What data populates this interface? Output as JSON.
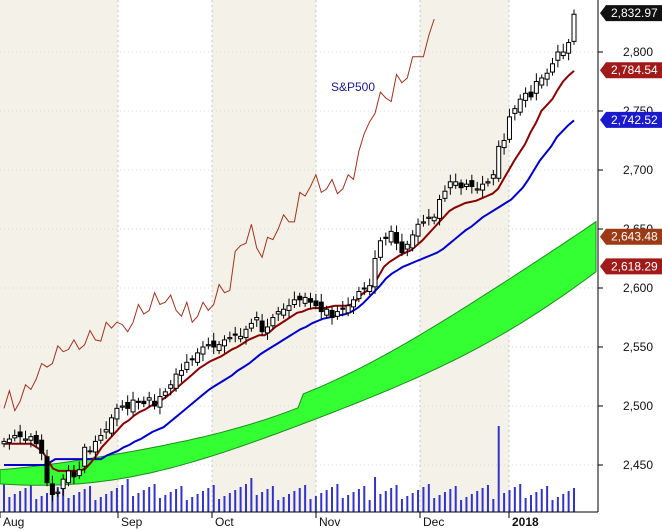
{
  "chart_data": {
    "type": "candlestick",
    "title": "",
    "series_label": "S&P500",
    "x_months": [
      "Aug",
      "Sep",
      "Oct",
      "Nov",
      "Dec",
      "2018"
    ],
    "y_ticks": [
      2450,
      2500,
      2550,
      2600,
      2650,
      2700,
      2750,
      2800
    ],
    "y_tick_labels": [
      "2,450",
      "2,500",
      "2,550",
      "2,600",
      "2,650",
      "2,700",
      "2,750",
      "2,800"
    ],
    "ylim": [
      2410,
      2840
    ],
    "grid": true,
    "colors": {
      "kijun": "#8b0000",
      "tenkan": "#0000cc",
      "chikou": "#a0321e",
      "cloud": "#33ff33",
      "cloud_edge": "#1e8c1e",
      "price_tag": "#111111",
      "volume": "#3333cc",
      "band_shade": "#f4f2e8"
    },
    "price_tags": [
      {
        "label": "2,832.97",
        "value": 2832.97,
        "color": "#111111"
      },
      {
        "label": "2,784.54",
        "value": 2784.54,
        "color": "#a01a1a"
      },
      {
        "label": "2,742.52",
        "value": 2742.52,
        "color": "#1a1acc"
      },
      {
        "label": "2,643.48",
        "value": 2643.48,
        "color": "#9b3a14"
      },
      {
        "label": "2,618.29",
        "value": 2618.29,
        "color": "#a01a1a"
      }
    ],
    "candles_close": [
      2470,
      2472,
      2475,
      2474,
      2472,
      2474,
      2468,
      2460,
      2435,
      2425,
      2427,
      2438,
      2445,
      2440,
      2446,
      2465,
      2462,
      2470,
      2475,
      2480,
      2490,
      2498,
      2500,
      2498,
      2505,
      2503,
      2502,
      2507,
      2500,
      2508,
      2512,
      2518,
      2527,
      2530,
      2537,
      2540,
      2545,
      2550,
      2552,
      2550,
      2552,
      2556,
      2558,
      2560,
      2559,
      2565,
      2570,
      2575,
      2563,
      2567,
      2575,
      2580,
      2582,
      2585,
      2590,
      2590,
      2592,
      2588,
      2585,
      2580,
      2582,
      2575,
      2580,
      2582,
      2585,
      2590,
      2597,
      2600,
      2602,
      2625,
      2640,
      2642,
      2648,
      2638,
      2630,
      2637,
      2645,
      2654,
      2656,
      2660,
      2660,
      2675,
      2682,
      2690,
      2690,
      2685,
      2688,
      2686,
      2684,
      2688,
      2690,
      2696,
      2720,
      2725,
      2745,
      2752,
      2760,
      2765,
      2762,
      2775,
      2778,
      2782,
      2790,
      2800,
      2800,
      2808,
      2832
    ],
    "kijun": [
      2468,
      2468,
      2468,
      2468,
      2468,
      2468,
      2465,
      2462,
      2455,
      2447,
      2445,
      2445,
      2445,
      2445,
      2445,
      2447,
      2452,
      2458,
      2465,
      2470,
      2475,
      2480,
      2485,
      2488,
      2492,
      2495,
      2497,
      2500,
      2502,
      2505,
      2508,
      2512,
      2516,
      2520,
      2524,
      2528,
      2532,
      2535,
      2538,
      2540,
      2542,
      2545,
      2548,
      2550,
      2553,
      2556,
      2558,
      2560,
      2560,
      2563,
      2567,
      2570,
      2573,
      2576,
      2579,
      2580,
      2582,
      2583,
      2583,
      2583,
      2584,
      2585,
      2585,
      2585,
      2586,
      2590,
      2595,
      2598,
      2602,
      2610,
      2618,
      2622,
      2625,
      2628,
      2630,
      2632,
      2636,
      2640,
      2645,
      2650,
      2655,
      2660,
      2665,
      2668,
      2670,
      2672,
      2673,
      2674,
      2676,
      2678,
      2680,
      2684,
      2692,
      2700,
      2708,
      2715,
      2722,
      2732,
      2740,
      2750,
      2755,
      2760,
      2768,
      2775,
      2780,
      2784
    ],
    "tenkan": [
      2450,
      2450,
      2450,
      2450,
      2450,
      2450,
      2450,
      2450,
      2452,
      2455,
      2455,
      2455,
      2455,
      2455,
      2455,
      2455,
      2455,
      2455,
      2458,
      2460,
      2462,
      2465,
      2467,
      2470,
      2472,
      2475,
      2478,
      2480,
      2482,
      2486,
      2490,
      2494,
      2498,
      2502,
      2506,
      2510,
      2514,
      2517,
      2520,
      2523,
      2526,
      2530,
      2533,
      2536,
      2540,
      2544,
      2547,
      2550,
      2553,
      2556,
      2559,
      2562,
      2565,
      2567,
      2570,
      2572,
      2574,
      2575,
      2576,
      2577,
      2578,
      2580,
      2583,
      2587,
      2592,
      2597,
      2602,
      2608,
      2612,
      2615,
      2618,
      2620,
      2622,
      2624,
      2626,
      2628,
      2630,
      2633,
      2637,
      2641,
      2645,
      2649,
      2652,
      2656,
      2660,
      2663,
      2666,
      2669,
      2672,
      2675,
      2680,
      2685,
      2692,
      2700,
      2708,
      2714,
      2720,
      2728,
      2733,
      2738,
      2742
    ]
  }
}
